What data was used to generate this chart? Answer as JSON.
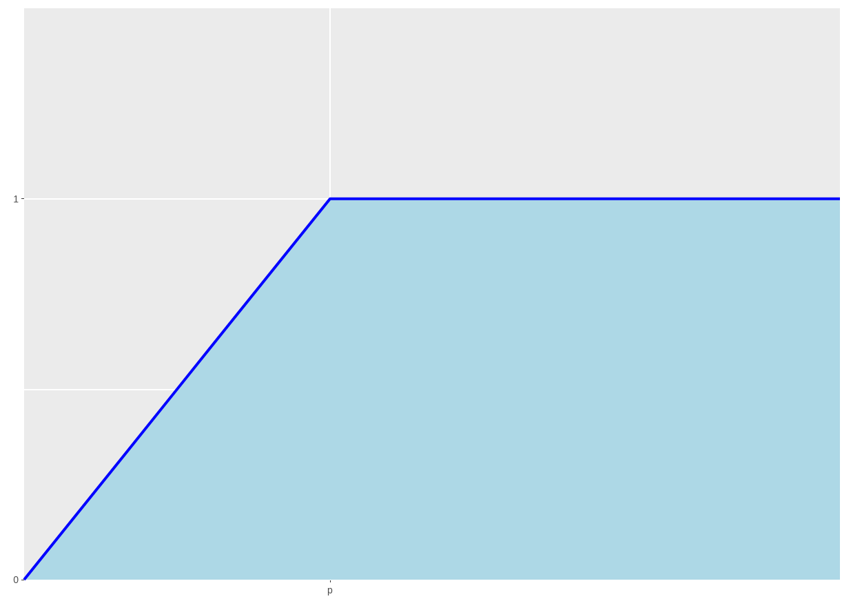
{
  "chart_data": {
    "type": "area",
    "categories": [
      null,
      null,
      null,
      "p",
      null,
      null,
      null,
      null,
      null
    ],
    "series": [
      {
        "color": "#0000ff",
        "values": [
          0,
          0.333,
          0.667,
          1,
          1,
          1,
          1,
          1,
          1
        ]
      }
    ],
    "ylim": [
      0,
      1.5
    ],
    "yticks": [
      0,
      {
        "value": 0.5,
        "label": null
      },
      1
    ],
    "grid": true,
    "marker": "none",
    "line_style": "solid"
  }
}
